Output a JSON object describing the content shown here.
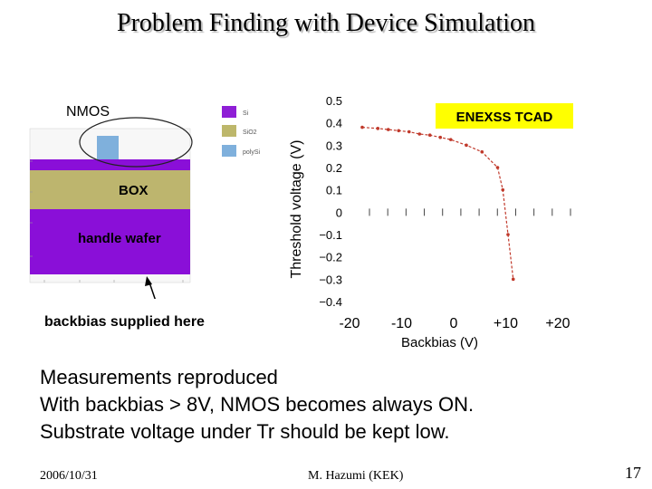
{
  "slide": {
    "title": "Problem Finding with Device Simulation",
    "bullets": [
      "Measurements reproduced",
      "With backbias > 8V, NMOS becomes always ON.",
      "Substrate voltage under Tr should be kept low."
    ],
    "footer_left": "2006/10/31",
    "footer_center": "M. Hazumi (KEK)",
    "page_number": "17"
  },
  "device_figure": {
    "nmos_label": "NMOS",
    "box_label": "BOX",
    "handle_label": "handle wafer",
    "backbias_note": "backbias supplied here",
    "legend": [
      {
        "label": "Si",
        "color": "#8f1fd6"
      },
      {
        "label": "SiO2",
        "color": "#bdb76b"
      },
      {
        "label": "polySi",
        "color": "#7fb0dc"
      }
    ],
    "colors": {
      "si": "#8a0fd8",
      "oxide": "#bdb56e",
      "poly": "#7fb0dc"
    }
  },
  "chart_data": {
    "type": "line",
    "title": "",
    "annotation": "ENEXSS TCAD",
    "xlabel": "Backbias (V)",
    "ylabel": "Threshold voltage (V)",
    "x_tick_labels": [
      "-20",
      "-10",
      "0",
      "+10",
      "+20"
    ],
    "y_tick_labels": [
      "0.5",
      "0.4",
      "0.3",
      "0.2",
      "0.1",
      "0",
      "−0.1",
      "−0.2",
      "−0.3",
      "−0.4"
    ],
    "ylim": [
      -0.4,
      0.5
    ],
    "xlim": [
      -20,
      20
    ],
    "series": [
      {
        "color": "#c0392b",
        "x": [
          -20,
          -17,
          -15,
          -13,
          -11,
          -9,
          -7,
          -5,
          -3,
          0,
          3,
          6,
          7,
          8,
          9
        ],
        "y": [
          0.38,
          0.375,
          0.37,
          0.365,
          0.36,
          0.35,
          0.345,
          0.335,
          0.325,
          0.3,
          0.27,
          0.2,
          0.1,
          -0.1,
          -0.3
        ]
      }
    ]
  }
}
